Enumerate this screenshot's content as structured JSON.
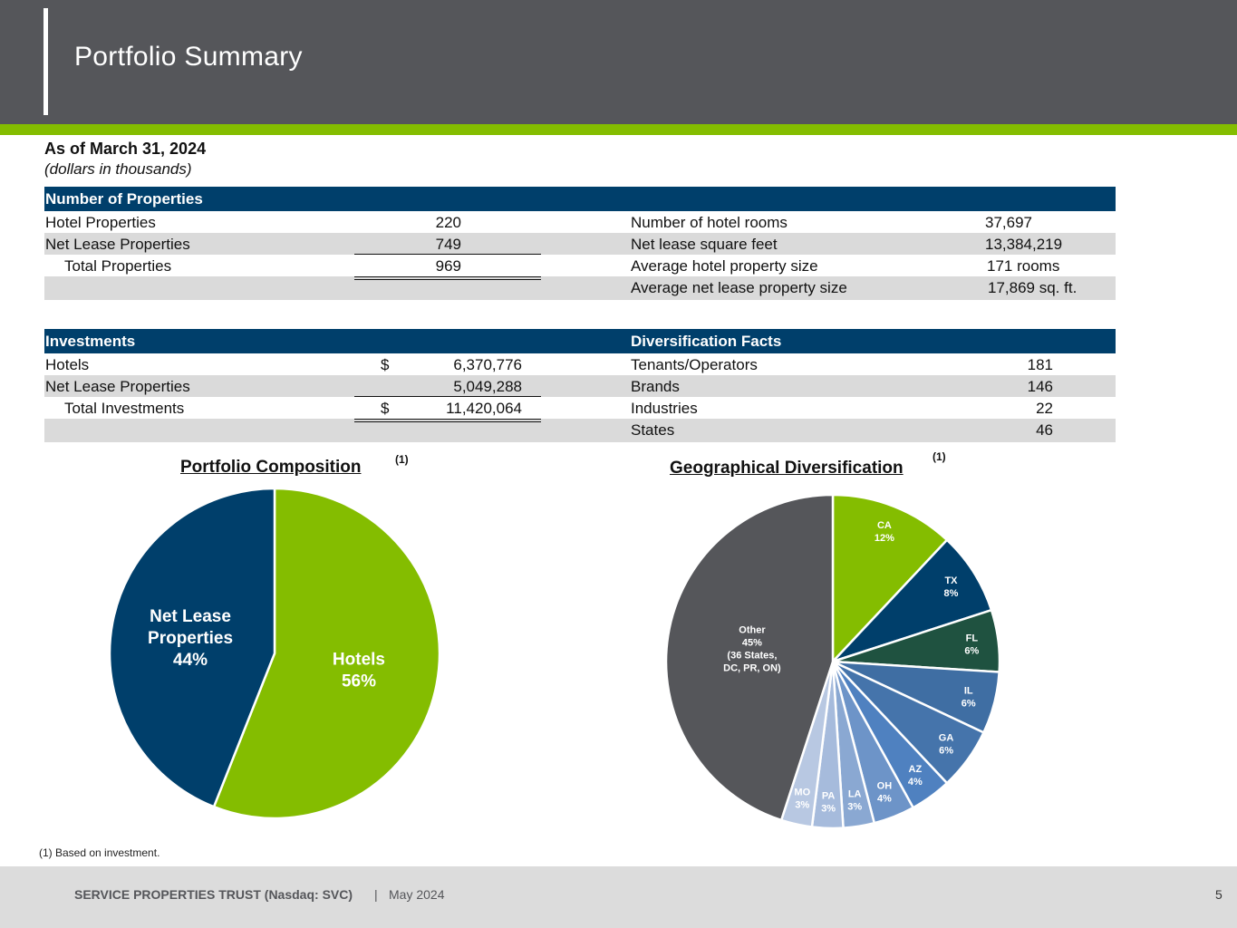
{
  "header": {
    "title": "Portfolio Summary"
  },
  "as_of": "As of March 31, 2024",
  "units": "(dollars in thousands)",
  "properties": {
    "header": "Number of Properties",
    "left_rows": [
      {
        "label": "Hotel Properties",
        "value": "220"
      },
      {
        "label": "Net Lease Properties",
        "value": "749"
      },
      {
        "label": "Total Properties",
        "value": "969"
      }
    ],
    "right_rows": [
      {
        "label": "Number of hotel rooms",
        "value": "37,697"
      },
      {
        "label": "Net lease square feet",
        "value": "13,384,219"
      },
      {
        "label": "Average hotel property size",
        "value": "171 rooms"
      },
      {
        "label": "Average net lease property size",
        "value": "17,869  sq. ft."
      }
    ]
  },
  "investments": {
    "header": "Investments",
    "rows": [
      {
        "label": "Hotels",
        "currency": "$",
        "value": "6,370,776"
      },
      {
        "label": "Net Lease Properties",
        "currency": "",
        "value": "5,049,288"
      },
      {
        "label": "Total Investments",
        "currency": "$",
        "value": "11,420,064"
      }
    ]
  },
  "diversification": {
    "header": "Diversification Facts",
    "rows": [
      {
        "label": "Tenants/Operators",
        "value": "181"
      },
      {
        "label": "Brands",
        "value": "146"
      },
      {
        "label": "Industries",
        "value": "22"
      },
      {
        "label": "States",
        "value": "46"
      }
    ]
  },
  "chart_data": [
    {
      "type": "pie",
      "title": "Portfolio Composition",
      "footnote_ref": "(1)",
      "slices": [
        {
          "label": "Hotels",
          "value": 56,
          "display": "56%",
          "color": "#84bd00"
        },
        {
          "label": "Net Lease Properties",
          "value": 44,
          "display": "44%",
          "color": "#003f6b"
        }
      ]
    },
    {
      "type": "pie",
      "title": "Geographical Diversification",
      "footnote_ref": "(1)",
      "slices": [
        {
          "label": "CA",
          "value": 12,
          "display": "12%",
          "color": "#84bd00"
        },
        {
          "label": "TX",
          "value": 8,
          "display": "8%",
          "color": "#003f6b"
        },
        {
          "label": "FL",
          "value": 6,
          "display": "6%",
          "color": "#1f5240"
        },
        {
          "label": "IL",
          "value": 6,
          "display": "6%",
          "color": "#3f6ea3"
        },
        {
          "label": "GA",
          "value": 6,
          "display": "6%",
          "color": "#4574ab"
        },
        {
          "label": "AZ",
          "value": 4,
          "display": "4%",
          "color": "#4f81c0"
        },
        {
          "label": "OH",
          "value": 4,
          "display": "4%",
          "color": "#6d94c8"
        },
        {
          "label": "LA",
          "value": 3,
          "display": "3%",
          "color": "#8aa8d2"
        },
        {
          "label": "PA",
          "value": 3,
          "display": "3%",
          "color": "#a6bbdc"
        },
        {
          "label": "MO",
          "value": 3,
          "display": "3%",
          "color": "#b8c8e2"
        },
        {
          "label": "Other",
          "value": 45,
          "display": "45%",
          "note": "(36 States, DC, PR, ON)",
          "color": "#55565a"
        }
      ]
    }
  ],
  "footnote": "(1) Based on investment.",
  "footer": {
    "brand": "SERVICE PROPERTIES TRUST (Nasdaq: SVC)",
    "separator": "|",
    "date": "May 2024",
    "page": "5"
  }
}
